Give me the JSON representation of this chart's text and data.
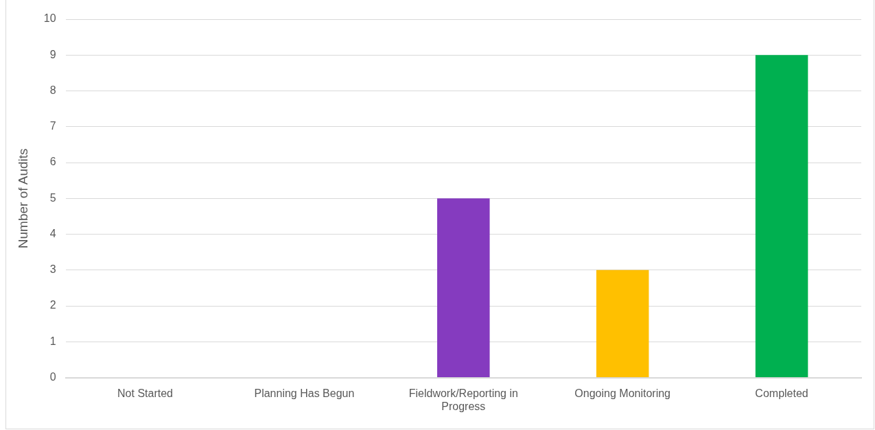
{
  "chart_data": {
    "type": "bar",
    "ylabel": "Number of Audits",
    "categories": [
      "Not Started",
      "Planning Has Begun",
      "Fieldwork/Reporting in Progress",
      "Ongoing Monitoring",
      "Completed"
    ],
    "values": [
      0,
      0,
      5,
      3,
      9
    ],
    "colors": [
      "#4472c4",
      "#ed7d31",
      "#853bbf",
      "#ffc000",
      "#00b050"
    ],
    "ylim": [
      0,
      10
    ],
    "yticks": [
      0,
      1,
      2,
      3,
      4,
      5,
      6,
      7,
      8,
      9,
      10
    ],
    "grid": "y",
    "legend": false
  }
}
